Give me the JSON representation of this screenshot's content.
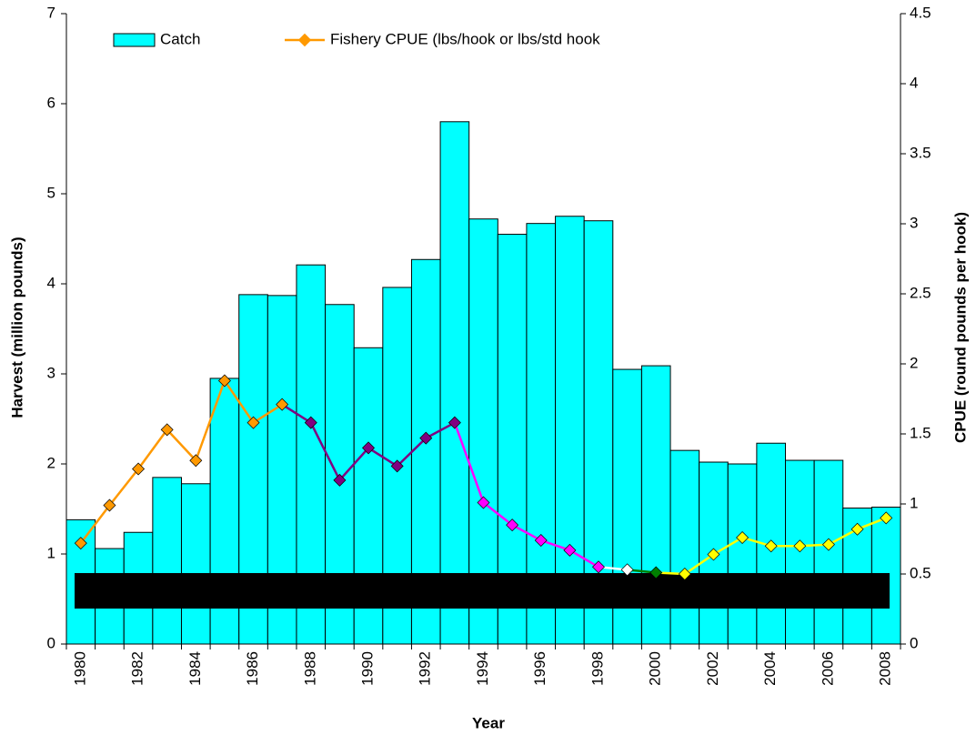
{
  "chart_data": {
    "type": "bar_line",
    "xlabel": "Year",
    "ylabel": "Harvest (million pounds)",
    "y2label": "CPUE (round pounds per hook)",
    "categories": [
      "1980",
      null,
      "1982",
      null,
      "1984",
      null,
      "1986",
      null,
      "1988",
      null,
      "1990",
      null,
      "1992",
      null,
      "1994",
      null,
      "1996",
      null,
      "1998",
      null,
      "2000",
      null,
      "2002",
      null,
      "2004",
      null,
      "2006",
      null,
      "2008"
    ],
    "series": [
      {
        "name": "Catch",
        "type": "bar",
        "color": "#00ffff",
        "values": [
          1.38,
          1.06,
          1.24,
          1.85,
          1.78,
          2.95,
          3.88,
          3.87,
          4.21,
          3.77,
          3.29,
          3.96,
          4.27,
          5.8,
          4.72,
          4.55,
          4.67,
          4.75,
          4.7,
          3.05,
          3.09,
          2.15,
          2.02,
          2.0,
          2.23,
          2.04,
          2.04,
          1.51,
          1.52
        ]
      },
      {
        "name": "Fishery CPUE (lbs/hook or lbs/std hook",
        "type": "line",
        "axis": "y2",
        "color": "#ff9900",
        "point_colors": [
          "#ff9900",
          "#ff9900",
          "#ff9900",
          "#ff9900",
          "#ff9900",
          "#ff9900",
          "#ff9900",
          "#ff9900",
          "#800080",
          "#800080",
          "#800080",
          "#800080",
          "#800080",
          "#800080",
          "#ff00ff",
          "#ff00ff",
          "#ff00ff",
          "#ff00ff",
          "#ff00ff",
          "#ffffff",
          "#008000",
          "#ffff00",
          "#ffff00",
          "#ffff00",
          "#ffff00",
          "#ffff00",
          "#ffff00",
          "#ffff00",
          "#ffff00"
        ],
        "values": [
          0.72,
          0.99,
          1.25,
          1.53,
          1.31,
          1.88,
          1.58,
          1.71,
          1.58,
          1.17,
          1.4,
          1.27,
          1.47,
          1.58,
          1.01,
          0.85,
          0.74,
          0.67,
          0.55,
          0.53,
          0.51,
          0.5,
          0.64,
          0.76,
          0.7,
          0.7,
          0.71,
          0.82,
          0.9
        ]
      }
    ],
    "ylim": [
      0,
      7
    ],
    "yticks": [
      0,
      1,
      2,
      3,
      4,
      5,
      6,
      7
    ],
    "y2lim": [
      0,
      4.5
    ],
    "y2ticks": [
      0,
      0.5,
      1,
      1.5,
      2,
      2.5,
      3,
      3.5,
      4,
      4.5
    ],
    "legend": "top-left"
  }
}
